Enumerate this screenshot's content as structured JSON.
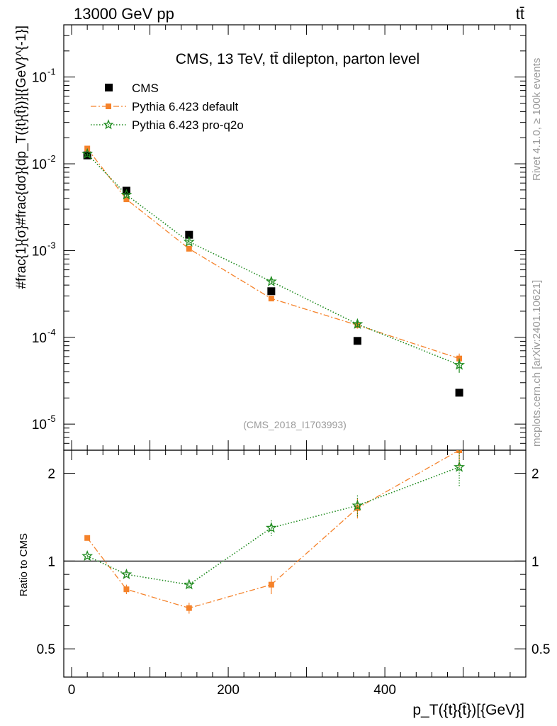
{
  "header": {
    "left": "13000 GeV pp",
    "right": "tt̄"
  },
  "side_text": {
    "rivet": "Rivet 4.1.0, ≥ 100k events",
    "mcplots": "mcplots.cern.ch [arXiv:2401.10621]"
  },
  "chart_data": {
    "type": "scatter",
    "title": "CMS, 13 TeV, tt̄ dilepton, parton level",
    "watermark": "(CMS_2018_I1703993)",
    "ylabel": "#frac{1}{σ}#frac{dσ}{dp_T({t}{t̄})}[{GeV}^{-1}]",
    "ratio_ylabel": "Ratio to CMS",
    "xlabel": "p_T({t}{t̄})[{GeV}]",
    "xlim": [
      -10,
      580
    ],
    "ylim": [
      5e-06,
      0.4
    ],
    "ratio_ylim": [
      0.4,
      2.4
    ],
    "x_ticks": [
      0,
      200,
      400
    ],
    "x_tick_labels": [
      "0",
      "200",
      "400"
    ],
    "y_ticks": [
      1e-05,
      0.0001,
      0.001,
      0.01,
      0.1
    ],
    "y_tick_labels": [
      [
        "10",
        "-5"
      ],
      [
        "10",
        "-4"
      ],
      [
        "10",
        "-3"
      ],
      [
        "10",
        "-2"
      ],
      [
        "10",
        "-1"
      ]
    ],
    "ratio_ticks": [
      0.5,
      1,
      2
    ],
    "ratio_tick_labels": [
      "0.5",
      "1",
      "2"
    ],
    "x": [
      20,
      70,
      150,
      255,
      365,
      495
    ],
    "legend_position": "top-left",
    "series": [
      {
        "name": "CMS",
        "marker": "square",
        "color": "#000000",
        "line": "none",
        "values": [
          0.0125,
          0.0049,
          0.00152,
          0.00034,
          9.1e-05,
          2.3e-05
        ],
        "ratio": [
          1,
          1,
          1,
          1,
          1,
          1
        ]
      },
      {
        "name": "Pythia 6.423 default",
        "marker": "square",
        "color": "#f5822a",
        "line": "dashdot",
        "values": [
          0.015,
          0.0039,
          0.00105,
          0.00028,
          0.000138,
          5.7e-05
        ],
        "errors": [
          0.0005,
          0.00015,
          4e-05,
          1.8e-05,
          1.2e-05,
          8e-06
        ],
        "ratio": [
          1.2,
          0.8,
          0.69,
          0.83,
          1.52,
          2.4
        ],
        "ratio_errors": [
          0.01,
          0.03,
          0.03,
          0.06,
          0.12,
          0.3
        ]
      },
      {
        "name": "Pythia 6.423 pro-q2o",
        "marker": "star",
        "color": "#1d8a1d",
        "line": "dotted",
        "values": [
          0.013,
          0.0044,
          0.00126,
          0.00044,
          0.000142,
          4.8e-05
        ],
        "errors": [
          0.0004,
          0.00015,
          5e-05,
          3e-05,
          1.2e-05,
          9e-06
        ],
        "ratio": [
          1.04,
          0.9,
          0.83,
          1.3,
          1.55,
          2.1
        ],
        "ratio_errors": [
          0.01,
          0.02,
          0.03,
          0.08,
          0.13,
          0.3
        ]
      }
    ]
  }
}
